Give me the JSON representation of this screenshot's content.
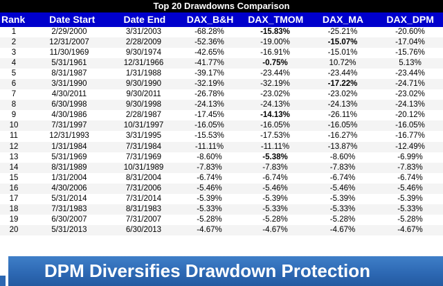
{
  "title": "Top 20 Drawdowns Comparison",
  "headers": [
    "Rank",
    "Date Start",
    "Date End",
    "DAX_B&H",
    "DAX_TMOM",
    "DAX_MA",
    "DAX_DPM"
  ],
  "rows": [
    {
      "cells": [
        "1",
        "2/29/2000",
        "3/31/2003",
        "-68.28%",
        "-15.83%",
        "-25.21%",
        "-20.60%"
      ],
      "bold": [
        4
      ]
    },
    {
      "cells": [
        "2",
        "12/31/2007",
        "2/28/2009",
        "-52.36%",
        "-19.00%",
        "-15.07%",
        "-17.04%"
      ],
      "bold": [
        5
      ]
    },
    {
      "cells": [
        "3",
        "11/30/1969",
        "9/30/1974",
        "-42.65%",
        "-16.91%",
        "-15.01%",
        "-15.76%"
      ],
      "bold": []
    },
    {
      "cells": [
        "4",
        "5/31/1961",
        "12/31/1966",
        "-41.77%",
        "-0.75%",
        "10.72%",
        "5.13%"
      ],
      "bold": [
        4
      ]
    },
    {
      "cells": [
        "5",
        "8/31/1987",
        "1/31/1988",
        "-39.17%",
        "-23.44%",
        "-23.44%",
        "-23.44%"
      ],
      "bold": []
    },
    {
      "cells": [
        "6",
        "3/31/1990",
        "9/30/1990",
        "-32.19%",
        "-32.19%",
        "-17.22%",
        "-24.71%"
      ],
      "bold": [
        5
      ]
    },
    {
      "cells": [
        "7",
        "4/30/2011",
        "9/30/2011",
        "-26.78%",
        "-23.02%",
        "-23.02%",
        "-23.02%"
      ],
      "bold": []
    },
    {
      "cells": [
        "8",
        "6/30/1998",
        "9/30/1998",
        "-24.13%",
        "-24.13%",
        "-24.13%",
        "-24.13%"
      ],
      "bold": []
    },
    {
      "cells": [
        "9",
        "4/30/1986",
        "2/28/1987",
        "-17.45%",
        "-14.13%",
        "-26.11%",
        "-20.12%"
      ],
      "bold": [
        4
      ]
    },
    {
      "cells": [
        "10",
        "7/31/1997",
        "10/31/1997",
        "-16.05%",
        "-16.05%",
        "-16.05%",
        "-16.05%"
      ],
      "bold": []
    },
    {
      "cells": [
        "11",
        "12/31/1993",
        "3/31/1995",
        "-15.53%",
        "-17.53%",
        "-16.27%",
        "-16.77%"
      ],
      "bold": []
    },
    {
      "cells": [
        "12",
        "1/31/1984",
        "7/31/1984",
        "-11.11%",
        "-11.11%",
        "-13.87%",
        "-12.49%"
      ],
      "bold": []
    },
    {
      "cells": [
        "13",
        "5/31/1969",
        "7/31/1969",
        "-8.60%",
        "-5.38%",
        "-8.60%",
        "-6.99%"
      ],
      "bold": [
        4
      ]
    },
    {
      "cells": [
        "14",
        "8/31/1989",
        "10/31/1989",
        "-7.83%",
        "-7.83%",
        "-7.83%",
        "-7.83%"
      ],
      "bold": []
    },
    {
      "cells": [
        "15",
        "1/31/2004",
        "8/31/2004",
        "-6.74%",
        "-6.74%",
        "-6.74%",
        "-6.74%"
      ],
      "bold": []
    },
    {
      "cells": [
        "16",
        "4/30/2006",
        "7/31/2006",
        "-5.46%",
        "-5.46%",
        "-5.46%",
        "-5.46%"
      ],
      "bold": []
    },
    {
      "cells": [
        "17",
        "5/31/2014",
        "7/31/2014",
        "-5.39%",
        "-5.39%",
        "-5.39%",
        "-5.39%"
      ],
      "bold": []
    },
    {
      "cells": [
        "18",
        "7/31/1983",
        "8/31/1983",
        "-5.33%",
        "-5.33%",
        "-5.33%",
        "-5.33%"
      ],
      "bold": []
    },
    {
      "cells": [
        "19",
        "6/30/2007",
        "7/31/2007",
        "-5.28%",
        "-5.28%",
        "-5.28%",
        "-5.28%"
      ],
      "bold": []
    },
    {
      "cells": [
        "20",
        "5/31/2013",
        "6/30/2013",
        "-4.67%",
        "-4.67%",
        "-4.67%",
        "-4.67%"
      ],
      "bold": []
    }
  ],
  "banner": "DPM Diversifies Drawdown Protection",
  "colors": {
    "header_bg": "#0000cc",
    "title_bg": "#000000",
    "banner_bg": "#2c67b2"
  }
}
